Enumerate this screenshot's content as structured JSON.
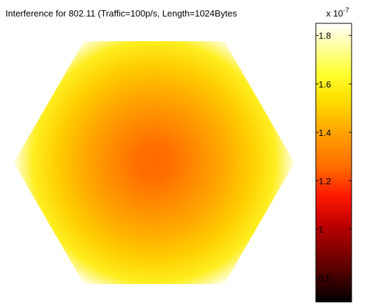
{
  "chart_data": {
    "type": "heatmap",
    "title": "Interference for 802.11 (Traffic=100p/s, Length=1024Bytes",
    "shape": "hexagon",
    "colormap": "hot",
    "colorbar": {
      "multiplier": "x 10",
      "exponent": "-7",
      "ticks": [
        {
          "label": "1.8",
          "value": 1.8
        },
        {
          "label": "1.6",
          "value": 1.6
        },
        {
          "label": "1.4",
          "value": 1.4
        },
        {
          "label": "1.2",
          "value": 1.2
        },
        {
          "label": "1",
          "value": 1.0
        },
        {
          "label": "0.8",
          "value": 0.8
        }
      ],
      "range": [
        0.7,
        1.85
      ]
    },
    "center_value": 1.33,
    "edge_value": 1.85,
    "grid": false,
    "legend": "right"
  }
}
